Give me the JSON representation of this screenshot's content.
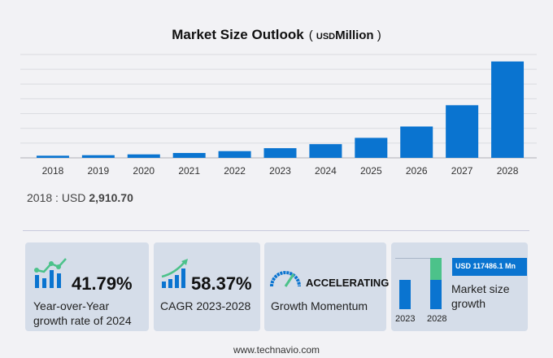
{
  "header": {
    "title": "Market Size Outlook",
    "unit_prefix": "USD",
    "unit": "Million"
  },
  "chart_data": {
    "type": "bar",
    "title": "Market Size Outlook",
    "ylabel": "",
    "categories": [
      "2018",
      "2019",
      "2020",
      "2021",
      "2022",
      "2023",
      "2024",
      "2025",
      "2026",
      "2027",
      "2028"
    ],
    "values": [
      2910.7,
      3620,
      4720,
      6580,
      9100,
      13100,
      18570,
      27100,
      42450,
      71300,
      130580
    ],
    "ylim": [
      0,
      140000
    ],
    "grid": true,
    "bar_color": "#0a74d0"
  },
  "first_value": {
    "label": "2018 : USD",
    "value": "2,910.70"
  },
  "cards": {
    "yoy": {
      "value": "41.79%",
      "label1": "Year-over-Year",
      "label2": "growth rate of 2024"
    },
    "cagr": {
      "value": "58.37%",
      "label": "CAGR 2023-2028"
    },
    "momentum": {
      "value": "ACCELERATING",
      "label": "Growth Momentum"
    },
    "growth": {
      "badge": "USD 117486.1 Mn",
      "label1": "Market size",
      "label2": "growth",
      "year_start": "2023",
      "year_end": "2028"
    }
  },
  "footer": "www.technavio.com"
}
